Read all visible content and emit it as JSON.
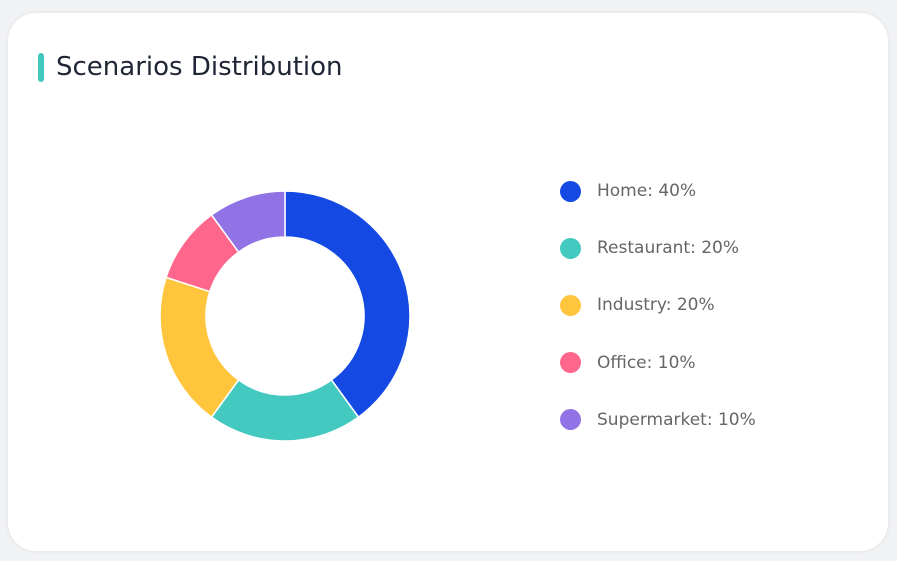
{
  "card": {
    "title": "Scenarios Distribution",
    "accent_color": "#41c9bd"
  },
  "chart_data": {
    "type": "pie",
    "variant": "donut",
    "start_angle": "top",
    "direction": "clockwise",
    "legend_position": "right",
    "slices": [
      {
        "label": "Home",
        "value": 40,
        "legend": "Home: 40%",
        "color": "#1449e3"
      },
      {
        "label": "Restaurant",
        "value": 20,
        "legend": "Restaurant: 20%",
        "color": "#43c9bf"
      },
      {
        "label": "Industry",
        "value": 20,
        "legend": "Industry: 20%",
        "color": "#ffc53d"
      },
      {
        "label": "Office",
        "value": 10,
        "legend": "Office: 10%",
        "color": "#ff668b"
      },
      {
        "label": "Supermarket",
        "value": 10,
        "legend": "Supermarket: 10%",
        "color": "#9173e6"
      }
    ]
  }
}
